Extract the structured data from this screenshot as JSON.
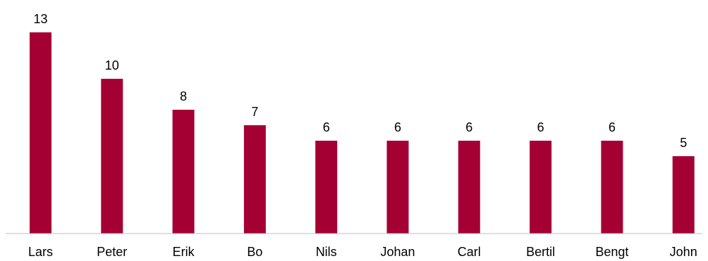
{
  "chart_data": {
    "type": "bar",
    "categories": [
      "Lars",
      "Peter",
      "Erik",
      "Bo",
      "Nils",
      "Johan",
      "Carl",
      "Bertil",
      "Bengt",
      "John"
    ],
    "values": [
      13,
      10,
      8,
      7,
      6,
      6,
      6,
      6,
      6,
      5
    ],
    "title": "",
    "xlabel": "",
    "ylabel": "",
    "ylim": [
      0,
      14
    ],
    "grid": false,
    "legend": "none",
    "data_labels": true,
    "bar_color": "#a50034"
  }
}
